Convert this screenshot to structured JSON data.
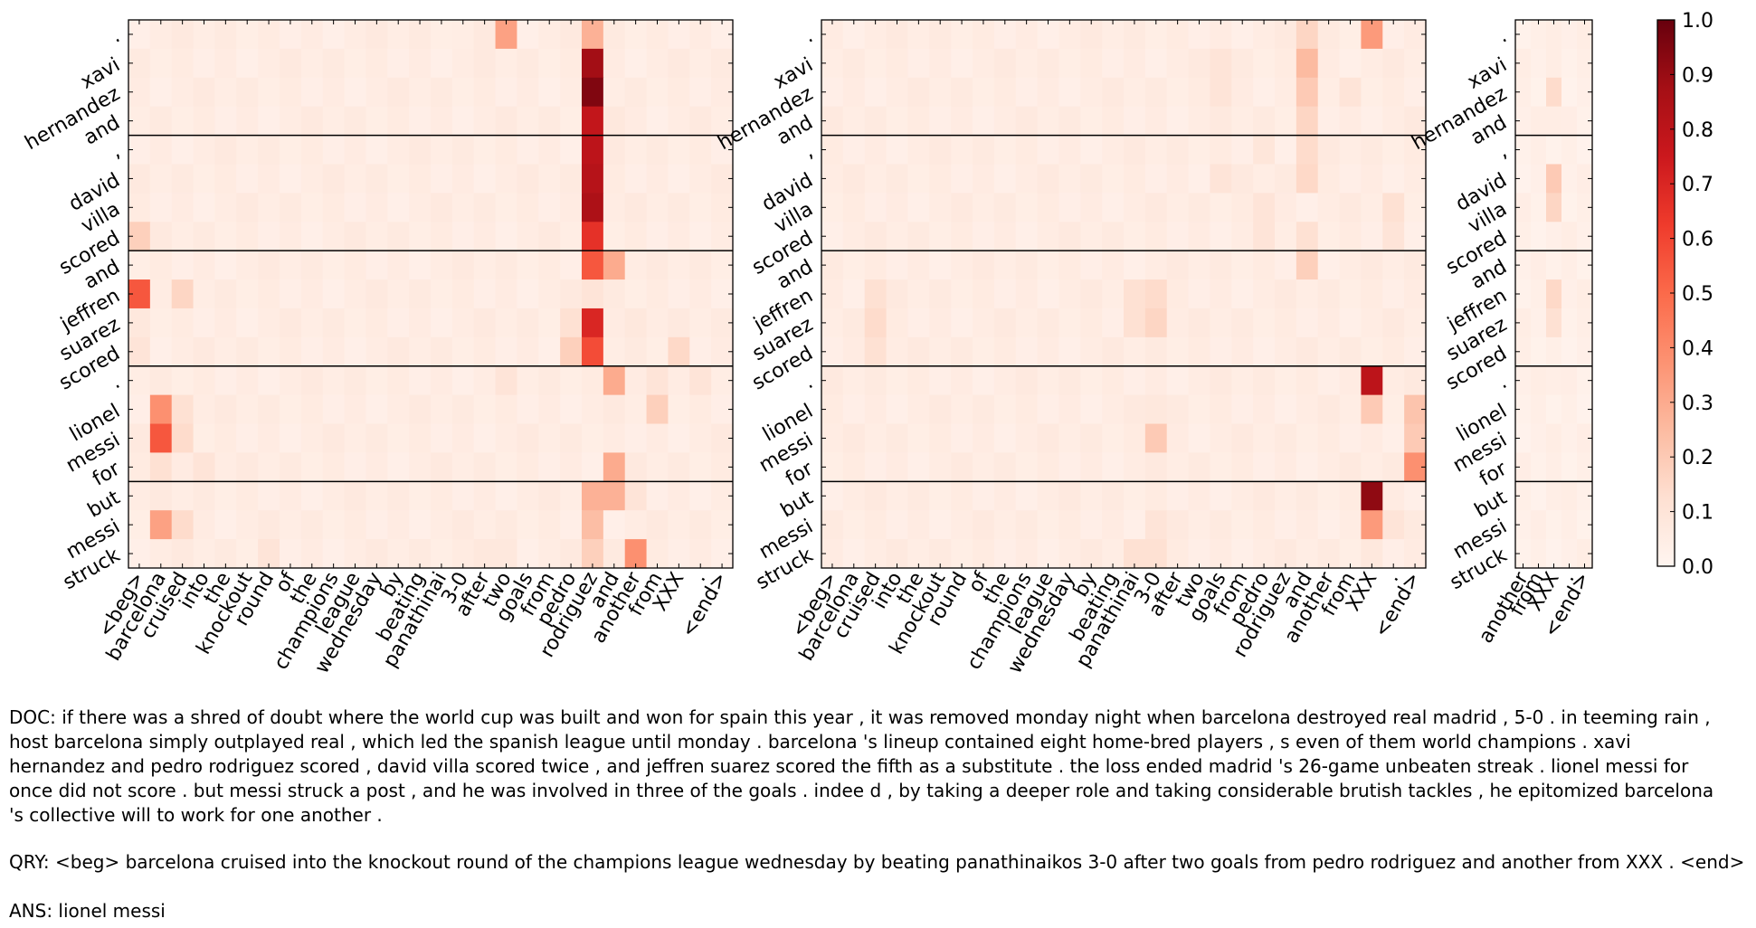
{
  "chart_data": [
    {
      "type": "heatmap",
      "name": "panel-1",
      "rows": [
        ".",
        "xavi",
        "hernandez",
        "and",
        ",",
        "david",
        "villa",
        "scored",
        "and",
        "jeffren",
        "suarez",
        "scored",
        ".",
        "lionel",
        "messi",
        "for",
        "but",
        "messi",
        "struck"
      ],
      "columns": [
        "<beg>",
        "barcelona",
        "cruised",
        "into",
        "the",
        "knockout",
        "round",
        "of",
        "the",
        "champions",
        "league",
        "wednesday",
        "by",
        "beating",
        "panathinai",
        "3-0",
        "after",
        "two",
        "goals",
        "from",
        "pedro",
        "rodriguez",
        "and",
        "another",
        "from",
        "XXX",
        ".",
        "<end>"
      ],
      "sentence_breaks_after_row": [
        3,
        7,
        11,
        15
      ],
      "highlights": [
        {
          "row": 0,
          "col": 17,
          "value": 0.33
        },
        {
          "row": 0,
          "col": 15,
          "value": 0.05
        },
        {
          "row": 0,
          "col": 16,
          "value": 0.07
        },
        {
          "row": 0,
          "col": 21,
          "value": 0.28
        },
        {
          "row": 1,
          "col": 21,
          "value": 0.88
        },
        {
          "row": 2,
          "col": 21,
          "value": 0.95
        },
        {
          "row": 3,
          "col": 21,
          "value": 0.78
        },
        {
          "row": 4,
          "col": 21,
          "value": 0.8
        },
        {
          "row": 5,
          "col": 21,
          "value": 0.82
        },
        {
          "row": 6,
          "col": 21,
          "value": 0.85
        },
        {
          "row": 7,
          "col": 21,
          "value": 0.66
        },
        {
          "row": 8,
          "col": 21,
          "value": 0.55
        },
        {
          "row": 9,
          "col": 21,
          "value": 0.1
        },
        {
          "row": 10,
          "col": 21,
          "value": 0.7
        },
        {
          "row": 11,
          "col": 21,
          "value": 0.58
        },
        {
          "row": 8,
          "col": 22,
          "value": 0.3
        },
        {
          "row": 3,
          "col": 22,
          "value": 0.08
        },
        {
          "row": 7,
          "col": 0,
          "value": 0.18
        },
        {
          "row": 9,
          "col": 0,
          "value": 0.55
        },
        {
          "row": 10,
          "col": 0,
          "value": 0.08
        },
        {
          "row": 11,
          "col": 0,
          "value": 0.1
        },
        {
          "row": 9,
          "col": 2,
          "value": 0.16
        },
        {
          "row": 10,
          "col": 20,
          "value": 0.12
        },
        {
          "row": 11,
          "col": 20,
          "value": 0.18
        },
        {
          "row": 11,
          "col": 25,
          "value": 0.15
        },
        {
          "row": 10,
          "col": 23,
          "value": 0.08
        },
        {
          "row": 13,
          "col": 1,
          "value": 0.38
        },
        {
          "row": 14,
          "col": 1,
          "value": 0.55
        },
        {
          "row": 15,
          "col": 1,
          "value": 0.12
        },
        {
          "row": 13,
          "col": 2,
          "value": 0.12
        },
        {
          "row": 14,
          "col": 2,
          "value": 0.14
        },
        {
          "row": 15,
          "col": 3,
          "value": 0.1
        },
        {
          "row": 12,
          "col": 22,
          "value": 0.3
        },
        {
          "row": 15,
          "col": 22,
          "value": 0.3
        },
        {
          "row": 14,
          "col": 22,
          "value": 0.06
        },
        {
          "row": 13,
          "col": 24,
          "value": 0.18
        },
        {
          "row": 12,
          "col": 24,
          "value": 0.1
        },
        {
          "row": 12,
          "col": 26,
          "value": 0.1
        },
        {
          "row": 12,
          "col": 17,
          "value": 0.1
        },
        {
          "row": 16,
          "col": 21,
          "value": 0.28
        },
        {
          "row": 16,
          "col": 22,
          "value": 0.28
        },
        {
          "row": 17,
          "col": 21,
          "value": 0.24
        },
        {
          "row": 18,
          "col": 21,
          "value": 0.18
        },
        {
          "row": 17,
          "col": 1,
          "value": 0.33
        },
        {
          "row": 17,
          "col": 2,
          "value": 0.14
        },
        {
          "row": 18,
          "col": 23,
          "value": 0.38
        },
        {
          "row": 16,
          "col": 23,
          "value": 0.1
        },
        {
          "row": 18,
          "col": 6,
          "value": 0.1
        },
        {
          "row": 18,
          "col": 16,
          "value": 0.08
        },
        {
          "row": 18,
          "col": 17,
          "value": 0.08
        }
      ],
      "base_value": 0.035
    },
    {
      "type": "heatmap",
      "name": "panel-2",
      "rows": [
        ".",
        "xavi",
        "hernandez",
        "and",
        ",",
        "david",
        "villa",
        "scored",
        "and",
        "jeffren",
        "suarez",
        "scored",
        ".",
        "lionel",
        "messi",
        "for",
        "but",
        "messi",
        "struck"
      ],
      "columns": [
        "<beg>",
        "barcelona",
        "cruised",
        "into",
        "the",
        "knockout",
        "round",
        "of",
        "the",
        "champions",
        "league",
        "wednesday",
        "by",
        "beating",
        "panathinai",
        "3-0",
        "after",
        "two",
        "goals",
        "from",
        "pedro",
        "rodriguez",
        "and",
        "another",
        "from",
        "XXX",
        ".",
        "<end>"
      ],
      "sentence_breaks_after_row": [
        3,
        7,
        11,
        15
      ],
      "highlights": [
        {
          "row": 0,
          "col": 25,
          "value": 0.35
        },
        {
          "row": 0,
          "col": 22,
          "value": 0.16
        },
        {
          "row": 1,
          "col": 22,
          "value": 0.25
        },
        {
          "row": 2,
          "col": 22,
          "value": 0.2
        },
        {
          "row": 3,
          "col": 22,
          "value": 0.16
        },
        {
          "row": 4,
          "col": 22,
          "value": 0.14
        },
        {
          "row": 5,
          "col": 22,
          "value": 0.15
        },
        {
          "row": 7,
          "col": 22,
          "value": 0.12
        },
        {
          "row": 8,
          "col": 22,
          "value": 0.18
        },
        {
          "row": 1,
          "col": 18,
          "value": 0.1
        },
        {
          "row": 2,
          "col": 18,
          "value": 0.1
        },
        {
          "row": 5,
          "col": 18,
          "value": 0.1
        },
        {
          "row": 4,
          "col": 20,
          "value": 0.09
        },
        {
          "row": 6,
          "col": 20,
          "value": 0.1
        },
        {
          "row": 7,
          "col": 20,
          "value": 0.1
        },
        {
          "row": 6,
          "col": 26,
          "value": 0.12
        },
        {
          "row": 7,
          "col": 26,
          "value": 0.1
        },
        {
          "row": 2,
          "col": 24,
          "value": 0.1
        },
        {
          "row": 9,
          "col": 2,
          "value": 0.12
        },
        {
          "row": 10,
          "col": 2,
          "value": 0.14
        },
        {
          "row": 11,
          "col": 2,
          "value": 0.12
        },
        {
          "row": 9,
          "col": 14,
          "value": 0.12
        },
        {
          "row": 10,
          "col": 14,
          "value": 0.12
        },
        {
          "row": 9,
          "col": 15,
          "value": 0.14
        },
        {
          "row": 10,
          "col": 15,
          "value": 0.16
        },
        {
          "row": 12,
          "col": 25,
          "value": 0.8
        },
        {
          "row": 13,
          "col": 25,
          "value": 0.2
        },
        {
          "row": 14,
          "col": 25,
          "value": 0.06
        },
        {
          "row": 13,
          "col": 27,
          "value": 0.22
        },
        {
          "row": 14,
          "col": 27,
          "value": 0.2
        },
        {
          "row": 15,
          "col": 27,
          "value": 0.38
        },
        {
          "row": 14,
          "col": 15,
          "value": 0.2
        },
        {
          "row": 13,
          "col": 15,
          "value": 0.08
        },
        {
          "row": 16,
          "col": 25,
          "value": 0.92
        },
        {
          "row": 17,
          "col": 25,
          "value": 0.35
        },
        {
          "row": 18,
          "col": 25,
          "value": 0.08
        },
        {
          "row": 17,
          "col": 26,
          "value": 0.1
        },
        {
          "row": 18,
          "col": 14,
          "value": 0.12
        },
        {
          "row": 18,
          "col": 15,
          "value": 0.12
        },
        {
          "row": 17,
          "col": 15,
          "value": 0.1
        }
      ],
      "base_value": 0.035
    },
    {
      "type": "heatmap",
      "name": "panel-3",
      "rows": [
        ".",
        "xavi",
        "hernandez",
        "and",
        ",",
        "david",
        "villa",
        "scored",
        "and",
        "jeffren",
        "suarez",
        "scored",
        ".",
        "lionel",
        "messi",
        "for",
        "but",
        "messi",
        "struck"
      ],
      "columns": [
        "another",
        "from",
        "XXX",
        ".",
        "<end>"
      ],
      "sentence_breaks_after_row": [
        3,
        7,
        11,
        15
      ],
      "highlights": [
        {
          "row": 0,
          "col": 2,
          "value": 0.05
        },
        {
          "row": 1,
          "col": 2,
          "value": 0.05
        },
        {
          "row": 2,
          "col": 2,
          "value": 0.14
        },
        {
          "row": 3,
          "col": 2,
          "value": 0.05
        },
        {
          "row": 5,
          "col": 2,
          "value": 0.2
        },
        {
          "row": 6,
          "col": 2,
          "value": 0.16
        },
        {
          "row": 9,
          "col": 2,
          "value": 0.15
        },
        {
          "row": 10,
          "col": 2,
          "value": 0.12
        },
        {
          "row": 12,
          "col": 2,
          "value": 0.04
        },
        {
          "row": 16,
          "col": 2,
          "value": 0.04
        }
      ],
      "base_value": 0.015
    }
  ],
  "colorbar": {
    "ticks": [
      "1.0",
      "0.9",
      "0.8",
      "0.7",
      "0.6",
      "0.5",
      "0.4",
      "0.3",
      "0.2",
      "0.1",
      "0.0"
    ],
    "range": [
      0,
      1
    ],
    "colors": [
      "#fff5f0",
      "#fee0d2",
      "#fcbba1",
      "#fc9272",
      "#fb6a4a",
      "#ef3b2c",
      "#cb181d",
      "#a50f15",
      "#67000d"
    ]
  },
  "caption": {
    "doc": "DOC: if there was a shred of doubt where the world cup was built and won for spain this year , it was removed monday night when barcelona destroyed real madrid , 5-0 . in teeming rain , host barcelona simply outplayed real , which led the spanish league until monday . barcelona 's lineup contained eight home-bred players , s even of them world champions . xavi hernandez and pedro rodriguez scored , david villa scored twice , and jeffren suarez scored the fifth as a substitute . the loss ended madrid 's 26-game unbeaten streak . lionel messi for once did not score . but messi struck a post , and he was involved in three of the goals . indee d , by taking a deeper role and taking considerable brutish tackles , he epitomized barcelona 's collective will to work for one another .",
    "qry": "QRY: <beg> barcelona cruised into the knockout round of the champions league wednesday by beating panathinaikos 3-0 after two goals from pedro rodriguez and another from XXX . <end>",
    "ans": "ANS: lionel messi"
  }
}
